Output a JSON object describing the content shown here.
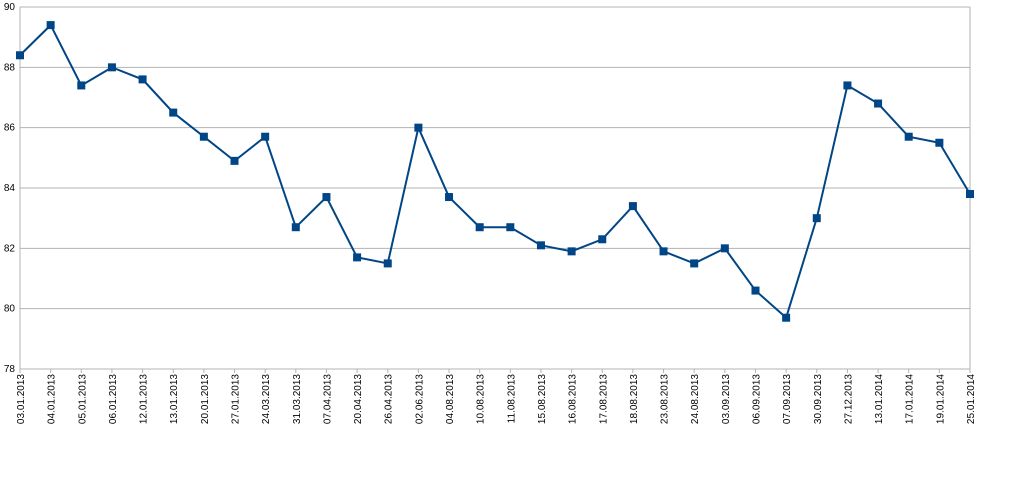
{
  "chart_data": {
    "type": "line",
    "categories": [
      "03.01.2013",
      "04.01.2013",
      "05.01.2013",
      "06.01.2013",
      "12.01.2013",
      "13.01.2013",
      "20.01.2013",
      "27.01.2013",
      "24.03.2013",
      "31.03.2013",
      "07.04.2013",
      "20.04.2013",
      "26.04.2013",
      "02.06.2013",
      "04.08.2013",
      "10.08.2013",
      "11.08.2013",
      "15.08.2013",
      "16.08.2013",
      "17.08.2013",
      "18.08.2013",
      "23.08.2013",
      "24.08.2013",
      "03.09.2013",
      "06.09.2013",
      "07.09.2013",
      "30.09.2013",
      "27.12.2013",
      "13.01.2014",
      "17.01.2014",
      "19.01.2014",
      "25.01.2014"
    ],
    "values": [
      88.4,
      89.4,
      87.4,
      88.0,
      87.6,
      86.5,
      85.7,
      84.9,
      85.7,
      82.7,
      83.7,
      81.7,
      81.5,
      86.0,
      83.7,
      82.7,
      82.7,
      82.1,
      81.9,
      82.3,
      83.4,
      81.9,
      81.5,
      82.0,
      80.6,
      79.7,
      83.0,
      87.4,
      86.8,
      85.7,
      85.5,
      83.8
    ],
    "color": "#004586",
    "ylim": [
      78,
      90
    ],
    "yticks": [
      78,
      80,
      82,
      84,
      86,
      88,
      90
    ],
    "grid": true
  }
}
